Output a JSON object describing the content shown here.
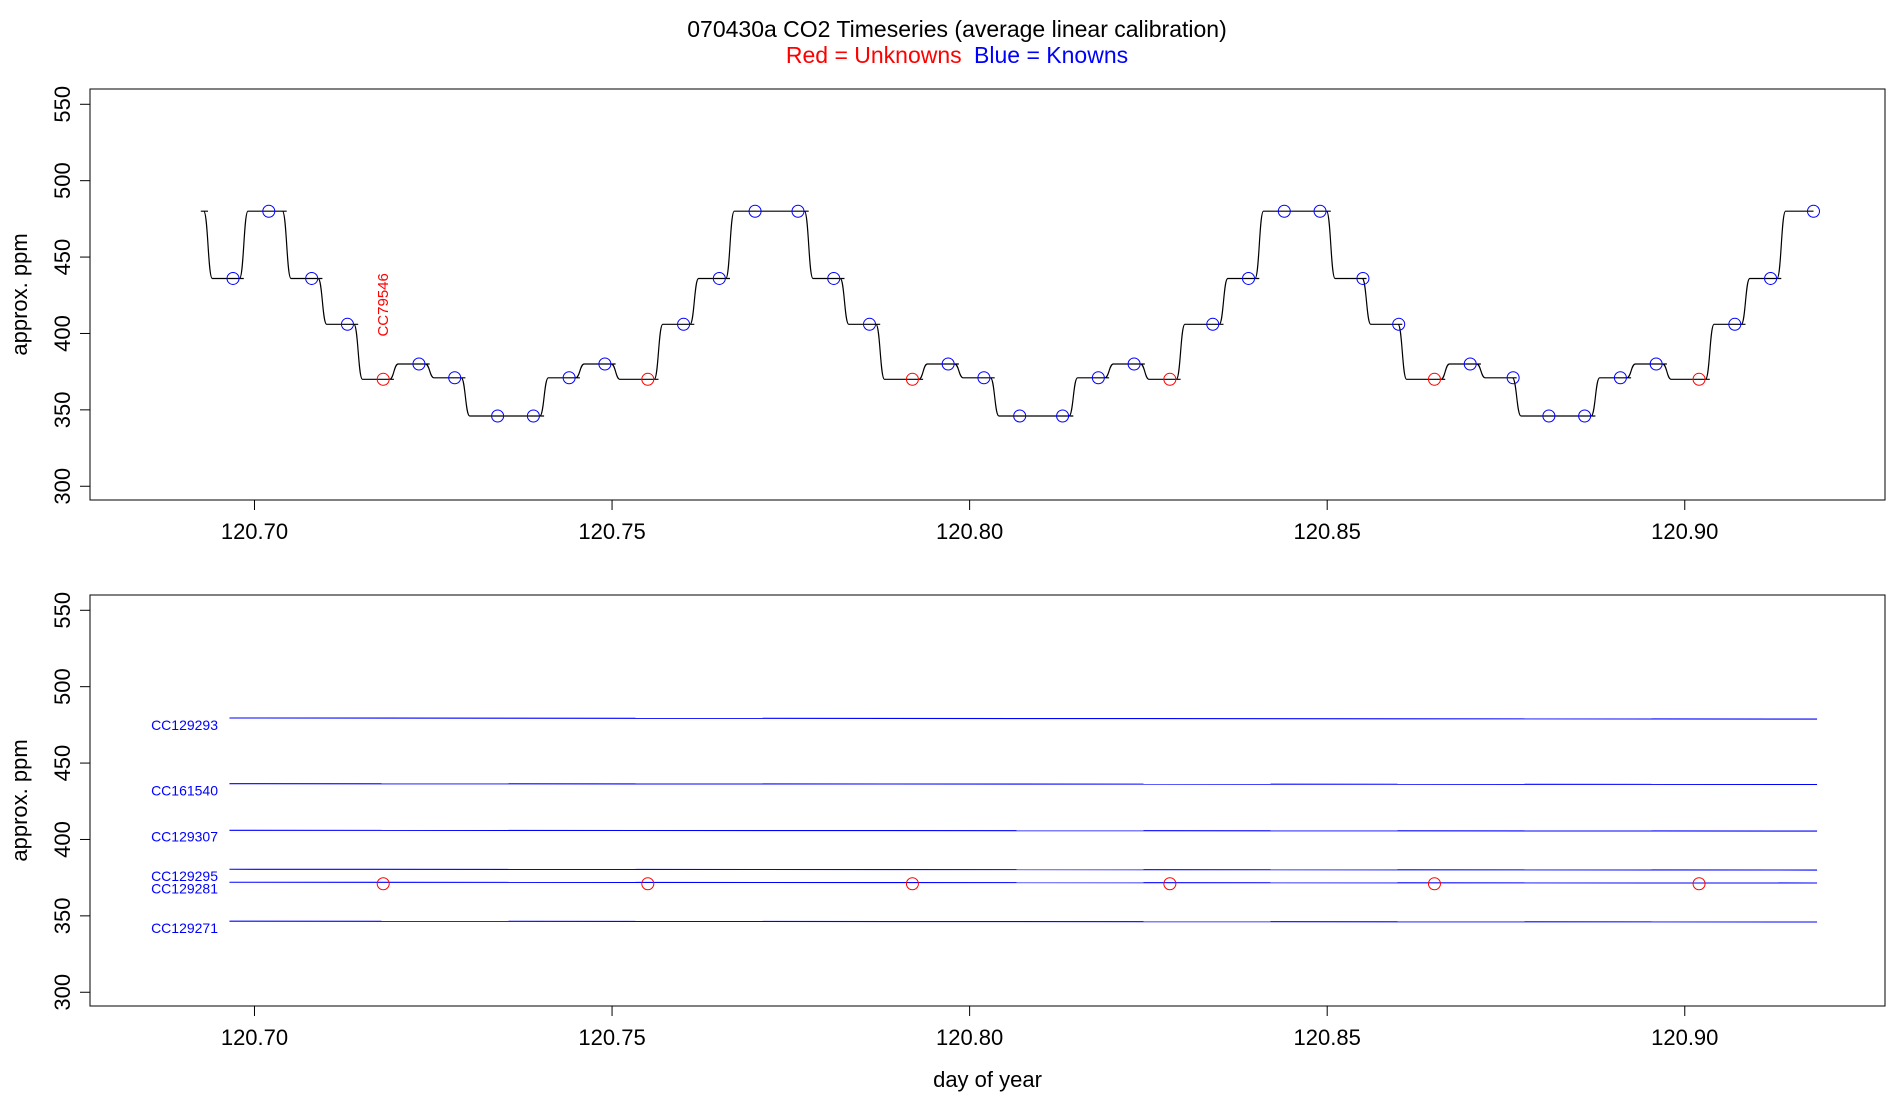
{
  "title": "070430a   CO2 Timeseries (average linear calibration)",
  "legend": {
    "red_label": "Red = Unknowns",
    "blue_label": "Blue = Knowns",
    "red_color": "#ff0000",
    "blue_color": "#0000ff"
  },
  "chart_data": [
    {
      "type": "line",
      "title": "070430a   CO2 Timeseries (average linear calibration)",
      "xlabel": "",
      "ylabel": "approx. ppm",
      "xlim": [
        120.677,
        120.928
      ],
      "ylim": [
        291,
        560
      ],
      "xticks": [
        "120.70",
        "120.75",
        "120.80",
        "120.85",
        "120.90"
      ],
      "xtick_values": [
        120.7,
        120.75,
        120.8,
        120.85,
        120.9
      ],
      "yticks": [
        "300",
        "350",
        "400",
        "450",
        "500",
        "550"
      ],
      "ytick_values": [
        300,
        350,
        400,
        450,
        500,
        550
      ],
      "trace": {
        "color": "#000000",
        "steps": [
          {
            "x0": 120.6925,
            "x1": 120.6935,
            "y": 480
          },
          {
            "x0": 120.6935,
            "x1": 120.6985,
            "y": 436
          },
          {
            "x0": 120.6985,
            "x1": 120.7045,
            "y": 480
          },
          {
            "x0": 120.7045,
            "x1": 120.7095,
            "y": 436
          },
          {
            "x0": 120.7095,
            "x1": 120.7145,
            "y": 406
          },
          {
            "x0": 120.7145,
            "x1": 120.7195,
            "y": 370
          },
          {
            "x0": 120.7195,
            "x1": 120.7245,
            "y": 380
          },
          {
            "x0": 120.7245,
            "x1": 120.7295,
            "y": 371
          },
          {
            "x0": 120.7295,
            "x1": 120.7405,
            "y": 346
          },
          {
            "x0": 120.7405,
            "x1": 120.7455,
            "y": 371
          },
          {
            "x0": 120.7455,
            "x1": 120.7505,
            "y": 380
          },
          {
            "x0": 120.7505,
            "x1": 120.7565,
            "y": 370
          },
          {
            "x0": 120.7565,
            "x1": 120.7615,
            "y": 406
          },
          {
            "x0": 120.7615,
            "x1": 120.7665,
            "y": 436
          },
          {
            "x0": 120.7665,
            "x1": 120.7775,
            "y": 480
          },
          {
            "x0": 120.7775,
            "x1": 120.7825,
            "y": 436
          },
          {
            "x0": 120.7825,
            "x1": 120.7875,
            "y": 406
          },
          {
            "x0": 120.7875,
            "x1": 120.7935,
            "y": 370
          },
          {
            "x0": 120.7935,
            "x1": 120.7985,
            "y": 380
          },
          {
            "x0": 120.7985,
            "x1": 120.8035,
            "y": 371
          },
          {
            "x0": 120.8035,
            "x1": 120.8145,
            "y": 346
          },
          {
            "x0": 120.8145,
            "x1": 120.8195,
            "y": 371
          },
          {
            "x0": 120.8195,
            "x1": 120.8245,
            "y": 380
          },
          {
            "x0": 120.8245,
            "x1": 120.8295,
            "y": 370
          },
          {
            "x0": 120.8295,
            "x1": 120.8355,
            "y": 406
          },
          {
            "x0": 120.8355,
            "x1": 120.8405,
            "y": 436
          },
          {
            "x0": 120.8405,
            "x1": 120.8505,
            "y": 480
          },
          {
            "x0": 120.8505,
            "x1": 120.8555,
            "y": 436
          },
          {
            "x0": 120.8555,
            "x1": 120.8605,
            "y": 406
          },
          {
            "x0": 120.8605,
            "x1": 120.8665,
            "y": 370
          },
          {
            "x0": 120.8665,
            "x1": 120.8715,
            "y": 380
          },
          {
            "x0": 120.8715,
            "x1": 120.8765,
            "y": 371
          },
          {
            "x0": 120.8765,
            "x1": 120.8875,
            "y": 346
          },
          {
            "x0": 120.8875,
            "x1": 120.8925,
            "y": 371
          },
          {
            "x0": 120.8925,
            "x1": 120.8975,
            "y": 380
          },
          {
            "x0": 120.8975,
            "x1": 120.9035,
            "y": 370
          },
          {
            "x0": 120.9035,
            "x1": 120.9085,
            "y": 406
          },
          {
            "x0": 120.9085,
            "x1": 120.9135,
            "y": 436
          },
          {
            "x0": 120.9135,
            "x1": 120.918,
            "y": 480
          }
        ]
      },
      "knowns": {
        "color": "#0000ff",
        "points": [
          {
            "x": 120.697,
            "y": 436
          },
          {
            "x": 120.702,
            "y": 480
          },
          {
            "x": 120.708,
            "y": 436
          },
          {
            "x": 120.713,
            "y": 406
          },
          {
            "x": 120.723,
            "y": 380
          },
          {
            "x": 120.728,
            "y": 371
          },
          {
            "x": 120.734,
            "y": 346
          },
          {
            "x": 120.739,
            "y": 346
          },
          {
            "x": 120.744,
            "y": 371
          },
          {
            "x": 120.749,
            "y": 380
          },
          {
            "x": 120.76,
            "y": 406
          },
          {
            "x": 120.765,
            "y": 436
          },
          {
            "x": 120.77,
            "y": 480
          },
          {
            "x": 120.776,
            "y": 480
          },
          {
            "x": 120.781,
            "y": 436
          },
          {
            "x": 120.786,
            "y": 406
          },
          {
            "x": 120.797,
            "y": 380
          },
          {
            "x": 120.802,
            "y": 371
          },
          {
            "x": 120.807,
            "y": 346
          },
          {
            "x": 120.813,
            "y": 346
          },
          {
            "x": 120.818,
            "y": 371
          },
          {
            "x": 120.823,
            "y": 380
          },
          {
            "x": 120.834,
            "y": 406
          },
          {
            "x": 120.839,
            "y": 436
          },
          {
            "x": 120.844,
            "y": 480
          },
          {
            "x": 120.849,
            "y": 480
          },
          {
            "x": 120.855,
            "y": 436
          },
          {
            "x": 120.86,
            "y": 406
          },
          {
            "x": 120.87,
            "y": 380
          },
          {
            "x": 120.876,
            "y": 371
          },
          {
            "x": 120.881,
            "y": 346
          },
          {
            "x": 120.886,
            "y": 346
          },
          {
            "x": 120.891,
            "y": 371
          },
          {
            "x": 120.896,
            "y": 380
          },
          {
            "x": 120.907,
            "y": 406
          },
          {
            "x": 120.912,
            "y": 436
          },
          {
            "x": 120.918,
            "y": 480
          }
        ]
      },
      "unknowns": {
        "color": "#ff0000",
        "points": [
          {
            "x": 120.718,
            "y": 370
          },
          {
            "x": 120.755,
            "y": 370
          },
          {
            "x": 120.792,
            "y": 370
          },
          {
            "x": 120.828,
            "y": 370
          },
          {
            "x": 120.865,
            "y": 370
          },
          {
            "x": 120.902,
            "y": 370
          }
        ]
      },
      "annotations": [
        {
          "text": "CC79546",
          "x": 120.718,
          "y": 398,
          "color": "#ff0000",
          "rotation": -90
        }
      ]
    },
    {
      "type": "line",
      "title": "",
      "xlabel": "day of year",
      "ylabel": "approx. ppm",
      "xlim": [
        120.677,
        120.928
      ],
      "ylim": [
        291,
        560
      ],
      "xticks": [
        "120.70",
        "120.75",
        "120.80",
        "120.85",
        "120.90"
      ],
      "xtick_values": [
        120.7,
        120.75,
        120.8,
        120.85,
        120.9
      ],
      "yticks": [
        "300",
        "350",
        "400",
        "450",
        "500",
        "550"
      ],
      "ytick_values": [
        300,
        350,
        400,
        450,
        500,
        550
      ],
      "line_color": "#0000ff",
      "series": [
        {
          "name": "CC129293",
          "x": [
            120.6965,
            120.9185
          ],
          "values": [
            479.5,
            478.8
          ],
          "label_y": 475
        },
        {
          "name": "CC161540",
          "x": [
            120.6965,
            120.9185
          ],
          "values": [
            436.5,
            436.0
          ],
          "label_y": 432
        },
        {
          "name": "CC129307",
          "x": [
            120.6965,
            120.9185
          ],
          "values": [
            406.0,
            405.5
          ],
          "label_y": 402
        },
        {
          "name": "CC129295",
          "x": [
            120.6965,
            120.9185
          ],
          "values": [
            380.5,
            380.0
          ],
          "label_y": 376
        },
        {
          "name": "CC129281",
          "x": [
            120.6965,
            120.9185
          ],
          "values": [
            372.0,
            371.5
          ],
          "label_y": 368
        },
        {
          "name": "CC129271",
          "x": [
            120.6965,
            120.9185
          ],
          "values": [
            346.5,
            346.0
          ],
          "label_y": 342
        }
      ],
      "unknowns": {
        "color": "#ff0000",
        "points": [
          {
            "x": 120.718,
            "y": 371
          },
          {
            "x": 120.755,
            "y": 371
          },
          {
            "x": 120.792,
            "y": 371
          },
          {
            "x": 120.828,
            "y": 371
          },
          {
            "x": 120.865,
            "y": 371
          },
          {
            "x": 120.902,
            "y": 371
          }
        ]
      }
    }
  ]
}
